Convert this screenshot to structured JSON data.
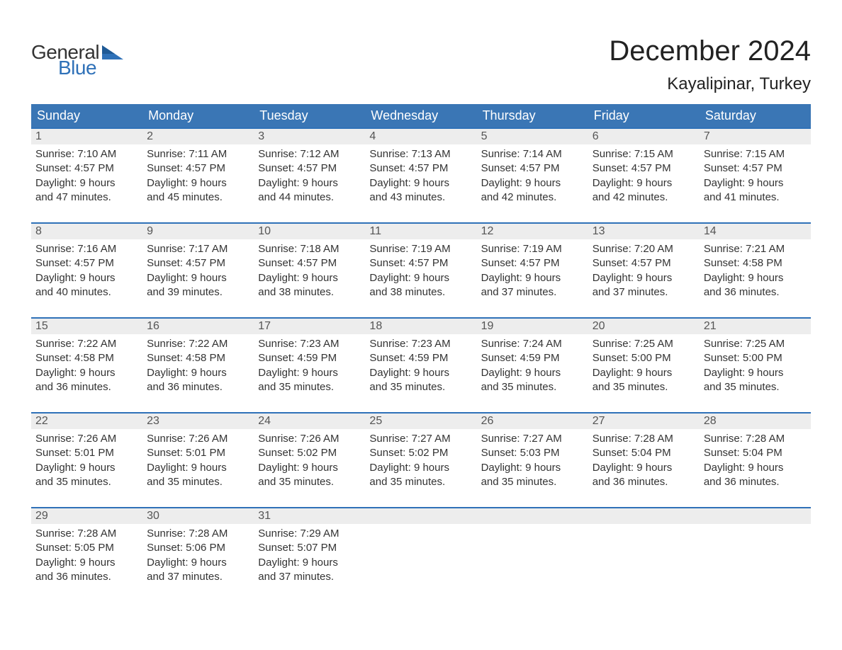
{
  "logo": {
    "word1": "General",
    "word2": "Blue",
    "flag_color": "#2f71b8",
    "text_dark": "#333333"
  },
  "title": "December 2024",
  "location": "Kayalipinar, Turkey",
  "colors": {
    "header_bg": "#3a76b5",
    "header_text": "#ffffff",
    "week_border": "#2f71b8",
    "daynum_bg": "#ededed",
    "daynum_text": "#555555",
    "body_text": "#333333",
    "page_bg": "#ffffff"
  },
  "day_names": [
    "Sunday",
    "Monday",
    "Tuesday",
    "Wednesday",
    "Thursday",
    "Friday",
    "Saturday"
  ],
  "weeks": [
    [
      {
        "n": "1",
        "sunrise": "Sunrise: 7:10 AM",
        "sunset": "Sunset: 4:57 PM",
        "d1": "Daylight: 9 hours",
        "d2": "and 47 minutes."
      },
      {
        "n": "2",
        "sunrise": "Sunrise: 7:11 AM",
        "sunset": "Sunset: 4:57 PM",
        "d1": "Daylight: 9 hours",
        "d2": "and 45 minutes."
      },
      {
        "n": "3",
        "sunrise": "Sunrise: 7:12 AM",
        "sunset": "Sunset: 4:57 PM",
        "d1": "Daylight: 9 hours",
        "d2": "and 44 minutes."
      },
      {
        "n": "4",
        "sunrise": "Sunrise: 7:13 AM",
        "sunset": "Sunset: 4:57 PM",
        "d1": "Daylight: 9 hours",
        "d2": "and 43 minutes."
      },
      {
        "n": "5",
        "sunrise": "Sunrise: 7:14 AM",
        "sunset": "Sunset: 4:57 PM",
        "d1": "Daylight: 9 hours",
        "d2": "and 42 minutes."
      },
      {
        "n": "6",
        "sunrise": "Sunrise: 7:15 AM",
        "sunset": "Sunset: 4:57 PM",
        "d1": "Daylight: 9 hours",
        "d2": "and 42 minutes."
      },
      {
        "n": "7",
        "sunrise": "Sunrise: 7:15 AM",
        "sunset": "Sunset: 4:57 PM",
        "d1": "Daylight: 9 hours",
        "d2": "and 41 minutes."
      }
    ],
    [
      {
        "n": "8",
        "sunrise": "Sunrise: 7:16 AM",
        "sunset": "Sunset: 4:57 PM",
        "d1": "Daylight: 9 hours",
        "d2": "and 40 minutes."
      },
      {
        "n": "9",
        "sunrise": "Sunrise: 7:17 AM",
        "sunset": "Sunset: 4:57 PM",
        "d1": "Daylight: 9 hours",
        "d2": "and 39 minutes."
      },
      {
        "n": "10",
        "sunrise": "Sunrise: 7:18 AM",
        "sunset": "Sunset: 4:57 PM",
        "d1": "Daylight: 9 hours",
        "d2": "and 38 minutes."
      },
      {
        "n": "11",
        "sunrise": "Sunrise: 7:19 AM",
        "sunset": "Sunset: 4:57 PM",
        "d1": "Daylight: 9 hours",
        "d2": "and 38 minutes."
      },
      {
        "n": "12",
        "sunrise": "Sunrise: 7:19 AM",
        "sunset": "Sunset: 4:57 PM",
        "d1": "Daylight: 9 hours",
        "d2": "and 37 minutes."
      },
      {
        "n": "13",
        "sunrise": "Sunrise: 7:20 AM",
        "sunset": "Sunset: 4:57 PM",
        "d1": "Daylight: 9 hours",
        "d2": "and 37 minutes."
      },
      {
        "n": "14",
        "sunrise": "Sunrise: 7:21 AM",
        "sunset": "Sunset: 4:58 PM",
        "d1": "Daylight: 9 hours",
        "d2": "and 36 minutes."
      }
    ],
    [
      {
        "n": "15",
        "sunrise": "Sunrise: 7:22 AM",
        "sunset": "Sunset: 4:58 PM",
        "d1": "Daylight: 9 hours",
        "d2": "and 36 minutes."
      },
      {
        "n": "16",
        "sunrise": "Sunrise: 7:22 AM",
        "sunset": "Sunset: 4:58 PM",
        "d1": "Daylight: 9 hours",
        "d2": "and 36 minutes."
      },
      {
        "n": "17",
        "sunrise": "Sunrise: 7:23 AM",
        "sunset": "Sunset: 4:59 PM",
        "d1": "Daylight: 9 hours",
        "d2": "and 35 minutes."
      },
      {
        "n": "18",
        "sunrise": "Sunrise: 7:23 AM",
        "sunset": "Sunset: 4:59 PM",
        "d1": "Daylight: 9 hours",
        "d2": "and 35 minutes."
      },
      {
        "n": "19",
        "sunrise": "Sunrise: 7:24 AM",
        "sunset": "Sunset: 4:59 PM",
        "d1": "Daylight: 9 hours",
        "d2": "and 35 minutes."
      },
      {
        "n": "20",
        "sunrise": "Sunrise: 7:25 AM",
        "sunset": "Sunset: 5:00 PM",
        "d1": "Daylight: 9 hours",
        "d2": "and 35 minutes."
      },
      {
        "n": "21",
        "sunrise": "Sunrise: 7:25 AM",
        "sunset": "Sunset: 5:00 PM",
        "d1": "Daylight: 9 hours",
        "d2": "and 35 minutes."
      }
    ],
    [
      {
        "n": "22",
        "sunrise": "Sunrise: 7:26 AM",
        "sunset": "Sunset: 5:01 PM",
        "d1": "Daylight: 9 hours",
        "d2": "and 35 minutes."
      },
      {
        "n": "23",
        "sunrise": "Sunrise: 7:26 AM",
        "sunset": "Sunset: 5:01 PM",
        "d1": "Daylight: 9 hours",
        "d2": "and 35 minutes."
      },
      {
        "n": "24",
        "sunrise": "Sunrise: 7:26 AM",
        "sunset": "Sunset: 5:02 PM",
        "d1": "Daylight: 9 hours",
        "d2": "and 35 minutes."
      },
      {
        "n": "25",
        "sunrise": "Sunrise: 7:27 AM",
        "sunset": "Sunset: 5:02 PM",
        "d1": "Daylight: 9 hours",
        "d2": "and 35 minutes."
      },
      {
        "n": "26",
        "sunrise": "Sunrise: 7:27 AM",
        "sunset": "Sunset: 5:03 PM",
        "d1": "Daylight: 9 hours",
        "d2": "and 35 minutes."
      },
      {
        "n": "27",
        "sunrise": "Sunrise: 7:28 AM",
        "sunset": "Sunset: 5:04 PM",
        "d1": "Daylight: 9 hours",
        "d2": "and 36 minutes."
      },
      {
        "n": "28",
        "sunrise": "Sunrise: 7:28 AM",
        "sunset": "Sunset: 5:04 PM",
        "d1": "Daylight: 9 hours",
        "d2": "and 36 minutes."
      }
    ],
    [
      {
        "n": "29",
        "sunrise": "Sunrise: 7:28 AM",
        "sunset": "Sunset: 5:05 PM",
        "d1": "Daylight: 9 hours",
        "d2": "and 36 minutes."
      },
      {
        "n": "30",
        "sunrise": "Sunrise: 7:28 AM",
        "sunset": "Sunset: 5:06 PM",
        "d1": "Daylight: 9 hours",
        "d2": "and 37 minutes."
      },
      {
        "n": "31",
        "sunrise": "Sunrise: 7:29 AM",
        "sunset": "Sunset: 5:07 PM",
        "d1": "Daylight: 9 hours",
        "d2": "and 37 minutes."
      },
      {
        "empty": true
      },
      {
        "empty": true
      },
      {
        "empty": true
      },
      {
        "empty": true
      }
    ]
  ]
}
